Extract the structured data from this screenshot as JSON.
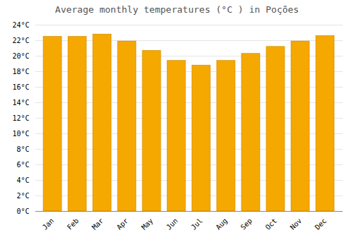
{
  "chart_data": {
    "type": "bar",
    "title": "Average monthly temperatures (°C ) in Poções",
    "categories": [
      "Jan",
      "Feb",
      "Mar",
      "Apr",
      "May",
      "Jun",
      "Jul",
      "Aug",
      "Sep",
      "Oct",
      "Nov",
      "Dec"
    ],
    "values": [
      22.5,
      22.5,
      22.8,
      21.9,
      20.7,
      19.4,
      18.8,
      19.4,
      20.3,
      21.2,
      21.9,
      22.6
    ],
    "color": "#F5A800",
    "ylim": [
      0,
      24
    ],
    "yticks": [
      {
        "value": 0,
        "label": "0°C"
      },
      {
        "value": 2,
        "label": "2°C"
      },
      {
        "value": 4,
        "label": "4°C"
      },
      {
        "value": 6,
        "label": "6°C"
      },
      {
        "value": 8,
        "label": "8°C"
      },
      {
        "value": 10,
        "label": "10°C"
      },
      {
        "value": 12,
        "label": "12°C"
      },
      {
        "value": 14,
        "label": "14°C"
      },
      {
        "value": 16,
        "label": "16°C"
      },
      {
        "value": 18,
        "label": "18°C"
      },
      {
        "value": 20,
        "label": "20°C"
      },
      {
        "value": 22,
        "label": "22°C"
      },
      {
        "value": 24,
        "label": "24°C"
      }
    ],
    "grid": true
  }
}
